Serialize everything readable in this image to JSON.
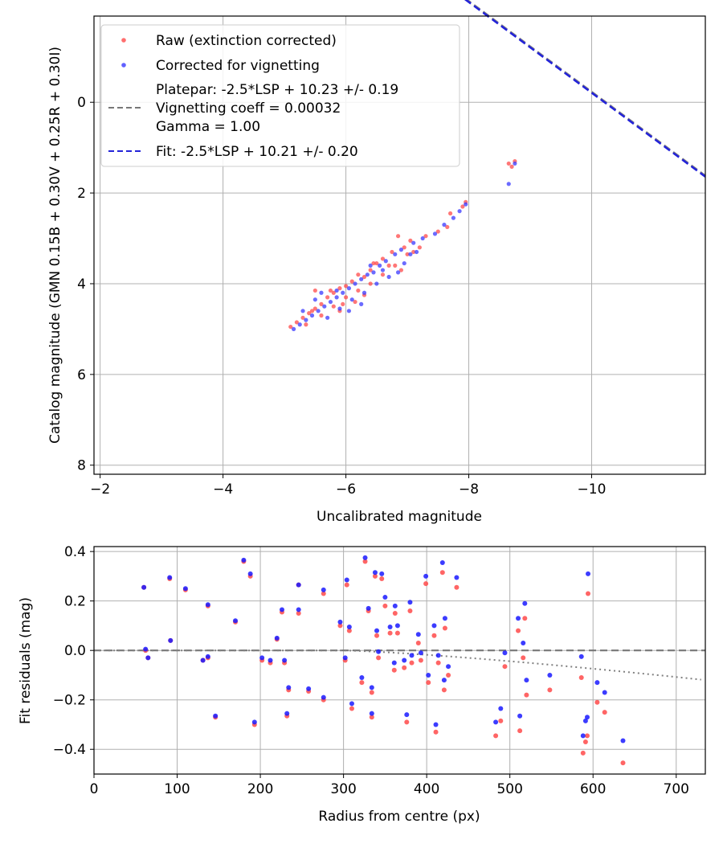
{
  "chart_data": [
    {
      "type": "scatter",
      "name": "calibration",
      "xlabel": "Uncalibrated magnitude",
      "ylabel": "Catalog magnitude (GMN 0.15B + 0.30V + 0.25R + 0.30I)",
      "xlim": [
        -1.9,
        -11.85
      ],
      "ylim": [
        8.2,
        -1.9
      ],
      "xticks": [
        -2,
        -4,
        -6,
        -8,
        -10
      ],
      "xtick_labels": [
        "−2",
        "−4",
        "−6",
        "−8",
        "−10"
      ],
      "yticks": [
        0,
        2,
        4,
        6,
        8
      ],
      "ytick_labels": [
        "0",
        "2",
        "4",
        "6",
        "8"
      ],
      "grid": true,
      "legend_position": "top-left",
      "colors": {
        "raw": "#ff4a4a",
        "corrected": "#3a3aff",
        "fit": "#2323d8",
        "platepar": "#777777"
      },
      "legend": {
        "raw": "Raw (extinction corrected)",
        "corrected": "Corrected for vignetting",
        "platepar_line1": "Platepar: -2.5*LSP + 10.23 +/- 0.19",
        "platepar_line2": "Vignetting coeff = 0.00032",
        "platepar_line3": "Gamma = 1.00",
        "fit": "Fit: -2.5*LSP + 10.21 +/- 0.20"
      },
      "fit_line": {
        "slope": -1.0,
        "intercept": -10.21
      },
      "platepar_line": {
        "slope": -1.0,
        "intercept": -10.23
      },
      "series": [
        {
          "name": "Raw (extinction corrected)",
          "points": [
            [
              -8.65,
              1.35
            ],
            [
              -8.7,
              1.42
            ],
            [
              -8.75,
              1.3
            ],
            [
              -7.95,
              2.2
            ],
            [
              -7.9,
              2.3
            ],
            [
              -7.7,
              2.45
            ],
            [
              -7.65,
              2.75
            ],
            [
              -7.5,
              2.85
            ],
            [
              -7.3,
              2.95
            ],
            [
              -7.05,
              3.05
            ],
            [
              -6.95,
              3.2
            ],
            [
              -6.85,
              2.95
            ],
            [
              -6.75,
              3.3
            ],
            [
              -6.6,
              3.45
            ],
            [
              -6.5,
              3.55
            ],
            [
              -6.4,
              3.7
            ],
            [
              -6.3,
              3.85
            ],
            [
              -6.2,
              3.8
            ],
            [
              -6.1,
              3.95
            ],
            [
              -6.0,
              4.05
            ],
            [
              -5.9,
              4.1
            ],
            [
              -5.8,
              4.2
            ],
            [
              -5.7,
              4.3
            ],
            [
              -5.6,
              4.45
            ],
            [
              -5.5,
              4.55
            ],
            [
              -5.4,
              4.65
            ],
            [
              -5.3,
              4.75
            ],
            [
              -5.2,
              4.85
            ],
            [
              -5.1,
              4.95
            ],
            [
              -5.35,
              4.9
            ],
            [
              -5.6,
              4.7
            ],
            [
              -5.8,
              4.5
            ],
            [
              -6.0,
              4.3
            ],
            [
              -6.2,
              4.15
            ],
            [
              -6.4,
              4.0
            ],
            [
              -6.6,
              3.8
            ],
            [
              -6.8,
              3.6
            ],
            [
              -7.0,
              3.35
            ],
            [
              -7.2,
              3.2
            ],
            [
              -6.9,
              3.7
            ],
            [
              -6.3,
              4.25
            ],
            [
              -5.5,
              4.15
            ],
            [
              -5.9,
              4.6
            ],
            [
              -6.15,
              4.4
            ],
            [
              -5.75,
              4.15
            ],
            [
              -5.45,
              4.6
            ],
            [
              -6.7,
              3.6
            ],
            [
              -6.45,
              3.55
            ],
            [
              -7.1,
              3.3
            ],
            [
              -5.95,
              4.45
            ]
          ]
        },
        {
          "name": "Corrected for vignetting",
          "points": [
            [
              -8.65,
              1.8
            ],
            [
              -8.75,
              1.35
            ],
            [
              -7.95,
              2.25
            ],
            [
              -7.85,
              2.4
            ],
            [
              -7.75,
              2.55
            ],
            [
              -7.6,
              2.7
            ],
            [
              -7.45,
              2.9
            ],
            [
              -7.25,
              3.0
            ],
            [
              -7.1,
              3.1
            ],
            [
              -6.9,
              3.25
            ],
            [
              -6.8,
              3.35
            ],
            [
              -6.65,
              3.5
            ],
            [
              -6.55,
              3.6
            ],
            [
              -6.45,
              3.75
            ],
            [
              -6.35,
              3.8
            ],
            [
              -6.25,
              3.9
            ],
            [
              -6.15,
              4.0
            ],
            [
              -6.05,
              4.1
            ],
            [
              -5.95,
              4.2
            ],
            [
              -5.85,
              4.3
            ],
            [
              -5.75,
              4.4
            ],
            [
              -5.65,
              4.5
            ],
            [
              -5.55,
              4.6
            ],
            [
              -5.45,
              4.7
            ],
            [
              -5.35,
              4.8
            ],
            [
              -5.25,
              4.9
            ],
            [
              -5.15,
              5.0
            ],
            [
              -5.7,
              4.75
            ],
            [
              -5.9,
              4.55
            ],
            [
              -6.1,
              4.35
            ],
            [
              -6.3,
              4.2
            ],
            [
              -6.5,
              4.0
            ],
            [
              -6.7,
              3.85
            ],
            [
              -6.95,
              3.55
            ],
            [
              -7.15,
              3.3
            ],
            [
              -5.6,
              4.2
            ],
            [
              -5.85,
              4.15
            ],
            [
              -6.05,
              4.6
            ],
            [
              -6.25,
              4.45
            ],
            [
              -5.5,
              4.35
            ],
            [
              -6.6,
              3.7
            ],
            [
              -6.85,
              3.75
            ],
            [
              -7.05,
              3.35
            ],
            [
              -5.3,
              4.6
            ],
            [
              -6.4,
              3.6
            ]
          ]
        }
      ]
    },
    {
      "type": "scatter",
      "name": "residuals",
      "xlabel": "Radius from centre (px)",
      "ylabel": "Fit residuals (mag)",
      "xlim": [
        0,
        735
      ],
      "ylim": [
        -0.5,
        0.42
      ],
      "xticks": [
        0,
        100,
        200,
        300,
        400,
        500,
        600,
        700
      ],
      "xtick_labels": [
        "0",
        "100",
        "200",
        "300",
        "400",
        "500",
        "600",
        "700"
      ],
      "yticks": [
        0.4,
        0.2,
        0.0,
        -0.2,
        -0.4
      ],
      "ytick_labels": [
        "0.4",
        "0.2",
        "0.0",
        "−0.2",
        "−0.4"
      ],
      "grid": true,
      "zero_line": 0.0,
      "vignetting_curve": {
        "coeff": 0.00032,
        "x_start": 300,
        "x_end": 735,
        "y_end": -0.12
      },
      "series": [
        {
          "name": "Raw (extinction corrected)",
          "points": [
            [
              60,
              0.255
            ],
            [
              62,
              0.0
            ],
            [
              65,
              -0.03
            ],
            [
              91,
              0.29
            ],
            [
              92,
              0.04
            ],
            [
              110,
              0.245
            ],
            [
              131,
              -0.04
            ],
            [
              137,
              0.18
            ],
            [
              137,
              -0.03
            ],
            [
              146,
              -0.27
            ],
            [
              170,
              0.115
            ],
            [
              180,
              0.36
            ],
            [
              188,
              0.3
            ],
            [
              193,
              -0.3
            ],
            [
              202,
              -0.04
            ],
            [
              212,
              -0.05
            ],
            [
              220,
              0.045
            ],
            [
              226,
              0.155
            ],
            [
              229,
              -0.05
            ],
            [
              232,
              -0.265
            ],
            [
              234,
              -0.16
            ],
            [
              246,
              0.265
            ],
            [
              246,
              0.15
            ],
            [
              258,
              -0.165
            ],
            [
              276,
              -0.2
            ],
            [
              276,
              0.23
            ],
            [
              296,
              0.1
            ],
            [
              302,
              -0.04
            ],
            [
              304,
              0.265
            ],
            [
              307,
              0.08
            ],
            [
              310,
              -0.235
            ],
            [
              322,
              -0.13
            ],
            [
              326,
              0.36
            ],
            [
              330,
              0.16
            ],
            [
              334,
              -0.27
            ],
            [
              334,
              -0.17
            ],
            [
              338,
              0.3
            ],
            [
              340,
              0.06
            ],
            [
              342,
              -0.03
            ],
            [
              346,
              0.29
            ],
            [
              350,
              0.18
            ],
            [
              356,
              0.07
            ],
            [
              361,
              -0.08
            ],
            [
              362,
              0.15
            ],
            [
              365,
              0.07
            ],
            [
              373,
              -0.07
            ],
            [
              376,
              -0.29
            ],
            [
              380,
              0.16
            ],
            [
              382,
              -0.05
            ],
            [
              390,
              0.03
            ],
            [
              393,
              -0.04
            ],
            [
              399,
              0.27
            ],
            [
              402,
              -0.13
            ],
            [
              409,
              0.06
            ],
            [
              411,
              -0.33
            ],
            [
              414,
              -0.05
            ],
            [
              419,
              0.315
            ],
            [
              421,
              -0.16
            ],
            [
              422,
              0.09
            ],
            [
              426,
              -0.1
            ],
            [
              436,
              0.255
            ],
            [
              483,
              -0.345
            ],
            [
              489,
              -0.285
            ],
            [
              494,
              -0.065
            ],
            [
              510,
              0.08
            ],
            [
              512,
              -0.325
            ],
            [
              516,
              -0.03
            ],
            [
              518,
              0.13
            ],
            [
              520,
              -0.18
            ],
            [
              548,
              -0.16
            ],
            [
              586,
              -0.11
            ],
            [
              588,
              -0.415
            ],
            [
              591,
              -0.37
            ],
            [
              593,
              -0.345
            ],
            [
              594,
              0.23
            ],
            [
              605,
              -0.21
            ],
            [
              614,
              -0.25
            ],
            [
              636,
              -0.455
            ]
          ]
        },
        {
          "name": "Corrected for vignetting",
          "points": [
            [
              60,
              0.255
            ],
            [
              62,
              0.005
            ],
            [
              65,
              -0.03
            ],
            [
              91,
              0.295
            ],
            [
              92,
              0.04
            ],
            [
              110,
              0.25
            ],
            [
              131,
              -0.04
            ],
            [
              137,
              0.185
            ],
            [
              137,
              -0.025
            ],
            [
              146,
              -0.265
            ],
            [
              170,
              0.12
            ],
            [
              180,
              0.365
            ],
            [
              188,
              0.31
            ],
            [
              193,
              -0.29
            ],
            [
              202,
              -0.03
            ],
            [
              212,
              -0.04
            ],
            [
              220,
              0.05
            ],
            [
              226,
              0.165
            ],
            [
              229,
              -0.04
            ],
            [
              232,
              -0.255
            ],
            [
              234,
              -0.15
            ],
            [
              246,
              0.265
            ],
            [
              246,
              0.165
            ],
            [
              258,
              -0.155
            ],
            [
              276,
              -0.19
            ],
            [
              276,
              0.245
            ],
            [
              296,
              0.115
            ],
            [
              302,
              -0.03
            ],
            [
              304,
              0.285
            ],
            [
              307,
              0.095
            ],
            [
              310,
              -0.215
            ],
            [
              322,
              -0.11
            ],
            [
              326,
              0.375
            ],
            [
              330,
              0.17
            ],
            [
              334,
              -0.255
            ],
            [
              334,
              -0.15
            ],
            [
              338,
              0.315
            ],
            [
              340,
              0.08
            ],
            [
              342,
              -0.005
            ],
            [
              346,
              0.31
            ],
            [
              350,
              0.215
            ],
            [
              356,
              0.095
            ],
            [
              361,
              -0.05
            ],
            [
              362,
              0.18
            ],
            [
              365,
              0.1
            ],
            [
              373,
              -0.04
            ],
            [
              376,
              -0.26
            ],
            [
              380,
              0.195
            ],
            [
              382,
              -0.02
            ],
            [
              390,
              0.065
            ],
            [
              393,
              -0.01
            ],
            [
              399,
              0.3
            ],
            [
              402,
              -0.1
            ],
            [
              409,
              0.1
            ],
            [
              411,
              -0.3
            ],
            [
              414,
              -0.02
            ],
            [
              419,
              0.355
            ],
            [
              421,
              -0.12
            ],
            [
              422,
              0.13
            ],
            [
              426,
              -0.065
            ],
            [
              436,
              0.295
            ],
            [
              483,
              -0.29
            ],
            [
              489,
              -0.235
            ],
            [
              494,
              -0.01
            ],
            [
              510,
              0.13
            ],
            [
              512,
              -0.265
            ],
            [
              516,
              0.03
            ],
            [
              518,
              0.19
            ],
            [
              520,
              -0.12
            ],
            [
              548,
              -0.1
            ],
            [
              586,
              -0.025
            ],
            [
              588,
              -0.345
            ],
            [
              591,
              -0.285
            ],
            [
              593,
              -0.27
            ],
            [
              594,
              0.31
            ],
            [
              605,
              -0.13
            ],
            [
              614,
              -0.17
            ],
            [
              636,
              -0.365
            ]
          ]
        }
      ]
    }
  ]
}
